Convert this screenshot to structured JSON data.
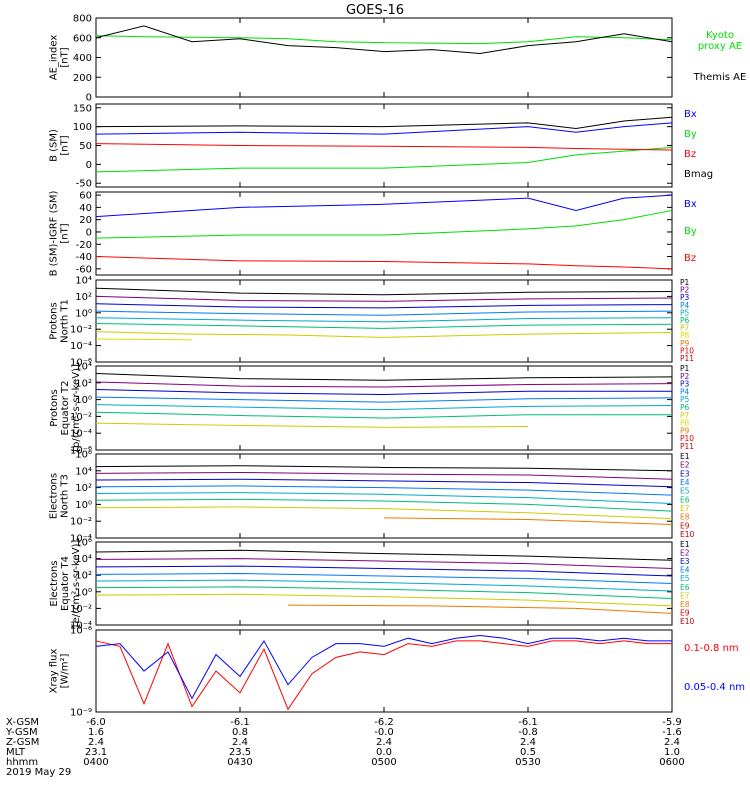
{
  "title": "GOES-16",
  "colors": {
    "black": "#000000",
    "blue": "#0000ff",
    "green": "#00dd00",
    "red": "#ff0000",
    "purple": "#800080"
  },
  "chart_data": [
    {
      "type": "line",
      "panel": "ae",
      "ylabel": [
        "AE_index",
        "[nT]"
      ],
      "ylim": [
        0,
        800
      ],
      "ticks": [
        "800",
        "600",
        "400",
        "200",
        "0"
      ],
      "tick_values": [
        800,
        600,
        400,
        200,
        0
      ],
      "x": [
        0,
        10,
        20,
        30,
        40,
        50,
        60,
        70,
        80,
        90,
        100,
        110,
        120
      ],
      "series": [
        {
          "name": "Kyoto proxy AE",
          "legend": [
            "Kyoto",
            "proxy AE"
          ],
          "color": "#00dd00",
          "values": [
            620,
            610,
            605,
            600,
            590,
            560,
            550,
            545,
            540,
            560,
            610,
            600,
            580
          ]
        },
        {
          "name": "Themis AE",
          "legend": [
            "Themis AE"
          ],
          "color": "#000000",
          "values": [
            600,
            720,
            560,
            590,
            520,
            500,
            460,
            480,
            440,
            520,
            560,
            640,
            560
          ]
        }
      ]
    },
    {
      "type": "line",
      "panel": "bsm",
      "ylabel": [
        "B (SM)",
        "[nT]"
      ],
      "ylim": [
        -60,
        160
      ],
      "ticks": [
        "150",
        "100",
        "50",
        "0",
        "-50"
      ],
      "tick_values": [
        150,
        100,
        50,
        0,
        -50
      ],
      "x": [
        0,
        30,
        60,
        90,
        100,
        110,
        120
      ],
      "series": [
        {
          "name": "Bx",
          "color": "#0000ff",
          "values": [
            80,
            85,
            80,
            100,
            85,
            100,
            110
          ]
        },
        {
          "name": "By",
          "color": "#00dd00",
          "values": [
            -20,
            -10,
            -10,
            5,
            25,
            35,
            45
          ]
        },
        {
          "name": "Bz",
          "color": "#ff0000",
          "values": [
            55,
            50,
            48,
            45,
            42,
            40,
            38
          ]
        },
        {
          "name": "Bmag",
          "color": "#000000",
          "values": [
            100,
            102,
            100,
            110,
            95,
            115,
            125
          ]
        }
      ]
    },
    {
      "type": "line",
      "panel": "bigrf",
      "ylabel": [
        "B (SM)-IGRF (SM)",
        "[nT]"
      ],
      "ylim": [
        -70,
        65
      ],
      "ticks": [
        "60",
        "40",
        "20",
        "0",
        "-20",
        "-40",
        "-60"
      ],
      "tick_values": [
        60,
        40,
        20,
        0,
        -20,
        -40,
        -60
      ],
      "x": [
        0,
        30,
        60,
        90,
        100,
        110,
        120
      ],
      "series": [
        {
          "name": "Bx",
          "color": "#0000ff",
          "values": [
            25,
            40,
            45,
            55,
            35,
            55,
            60
          ]
        },
        {
          "name": "By",
          "color": "#00dd00",
          "values": [
            -10,
            -5,
            -5,
            5,
            10,
            20,
            35
          ]
        },
        {
          "name": "Bz",
          "color": "#ff0000",
          "values": [
            -40,
            -47,
            -48,
            -52,
            -55,
            -57,
            -60
          ]
        }
      ]
    },
    {
      "type": "line",
      "panel": "protons-t1",
      "ylabel": [
        "Protons",
        "North T1"
      ],
      "yscale": "log",
      "ylim": [
        -6,
        4
      ],
      "ticks": [
        "10⁴",
        "10²",
        "10⁰",
        "10⁻²",
        "10⁻⁴",
        "10⁻⁶"
      ],
      "tick_exps": [
        4,
        2,
        0,
        -2,
        -4,
        -6
      ],
      "channels": [
        "P1",
        "P2",
        "P3",
        "P4",
        "P5",
        "P6",
        "P7",
        "P8",
        "P9",
        "P10",
        "P11"
      ],
      "channel_colors": [
        "#000000",
        "#800080",
        "#0000cc",
        "#0077ff",
        "#00aacc",
        "#00bb77",
        "#cccc00",
        "#dddd00",
        "#ee7700",
        "#dd0000",
        "#bb0000"
      ],
      "series_log10": [
        {
          "name": "P1",
          "x": [
            0,
            30,
            60,
            90,
            120
          ],
          "values": [
            3.0,
            2.4,
            2.2,
            2.5,
            2.6
          ]
        },
        {
          "name": "P2",
          "x": [
            0,
            30,
            60,
            90,
            120
          ],
          "values": [
            2.0,
            1.5,
            1.4,
            1.7,
            1.8
          ]
        },
        {
          "name": "P3",
          "x": [
            0,
            30,
            60,
            90,
            120
          ],
          "values": [
            1.1,
            0.7,
            0.6,
            0.9,
            1.0
          ]
        },
        {
          "name": "P4",
          "x": [
            0,
            30,
            60,
            90,
            120
          ],
          "values": [
            0.2,
            -0.1,
            -0.3,
            0.1,
            0.2
          ]
        },
        {
          "name": "P5",
          "x": [
            0,
            30,
            60,
            90,
            120
          ],
          "values": [
            -0.6,
            -0.9,
            -1.1,
            -0.7,
            -0.6
          ]
        },
        {
          "name": "P6",
          "x": [
            0,
            30,
            60,
            90,
            120
          ],
          "values": [
            -1.3,
            -1.6,
            -1.9,
            -1.5,
            -1.4
          ]
        },
        {
          "name": "P7",
          "x": [
            0,
            20,
            40,
            60,
            90,
            120
          ],
          "values": [
            -2.3,
            -2.6,
            -2.7,
            -3.0,
            -2.6,
            -2.4
          ]
        },
        {
          "name": "P8",
          "x": [
            0,
            20
          ],
          "values": [
            -3.2,
            -3.3
          ]
        }
      ]
    },
    {
      "type": "line",
      "panel": "protons-t2",
      "ylabel": [
        "Protons",
        "Equator T2",
        "[p/(cm²-s-sr-keV)]"
      ],
      "yscale": "log",
      "ylim": [
        -6,
        4
      ],
      "ticks": [
        "10⁴",
        "10²",
        "10⁰",
        "10⁻²",
        "10⁻⁴",
        "10⁻⁶"
      ],
      "tick_exps": [
        4,
        2,
        0,
        -2,
        -4,
        -6
      ],
      "channels": [
        "P1",
        "P2",
        "P3",
        "P4",
        "P5",
        "P6",
        "P7",
        "P8",
        "P9",
        "P10",
        "P11"
      ],
      "channel_colors": [
        "#000000",
        "#800080",
        "#0000cc",
        "#0077ff",
        "#00aacc",
        "#00bb77",
        "#cccc00",
        "#dddd00",
        "#ee7700",
        "#dd0000",
        "#bb0000"
      ],
      "series_log10": [
        {
          "name": "P1",
          "x": [
            0,
            30,
            60,
            90,
            120
          ],
          "values": [
            3.1,
            2.5,
            2.3,
            2.6,
            2.7
          ]
        },
        {
          "name": "P2",
          "x": [
            0,
            30,
            60,
            90,
            120
          ],
          "values": [
            2.1,
            1.6,
            1.5,
            1.8,
            1.9
          ]
        },
        {
          "name": "P3",
          "x": [
            0,
            30,
            60,
            90,
            120
          ],
          "values": [
            1.2,
            0.8,
            0.6,
            1.0,
            1.0
          ]
        },
        {
          "name": "P4",
          "x": [
            0,
            30,
            60,
            90,
            120
          ],
          "values": [
            0.3,
            0.0,
            -0.3,
            0.1,
            0.2
          ]
        },
        {
          "name": "P5",
          "x": [
            0,
            30,
            60,
            90,
            120
          ],
          "values": [
            -0.6,
            -0.9,
            -1.2,
            -0.8,
            -0.7
          ]
        },
        {
          "name": "P6",
          "x": [
            0,
            30,
            60,
            90,
            120
          ],
          "values": [
            -1.5,
            -1.9,
            -2.2,
            -1.8,
            -1.8
          ]
        },
        {
          "name": "P7",
          "x": [
            0,
            20,
            60,
            90
          ],
          "values": [
            -2.8,
            -3.0,
            -3.3,
            -3.2
          ]
        }
      ]
    },
    {
      "type": "line",
      "panel": "electrons-t3",
      "ylabel": [
        "Electrons",
        "North T3"
      ],
      "yscale": "log",
      "ylim": [
        -4,
        6
      ],
      "ticks": [
        "10⁶",
        "10⁴",
        "10²",
        "10⁰",
        "10⁻²",
        "10⁻⁴"
      ],
      "tick_exps": [
        6,
        4,
        2,
        0,
        -2,
        -4
      ],
      "channels": [
        "E1",
        "E2",
        "E3",
        "E4",
        "E5",
        "E6",
        "E7",
        "E8",
        "E9",
        "E10"
      ],
      "channel_colors": [
        "#000000",
        "#800080",
        "#0000cc",
        "#0077ff",
        "#00aacc",
        "#00bb77",
        "#cccc00",
        "#ee7700",
        "#dd0000",
        "#bb0000"
      ],
      "series_log10": [
        {
          "name": "E1",
          "x": [
            0,
            30,
            60,
            90,
            120
          ],
          "values": [
            4.5,
            4.6,
            4.4,
            4.3,
            4.0
          ]
        },
        {
          "name": "E2",
          "x": [
            0,
            30,
            60,
            90,
            120
          ],
          "values": [
            3.7,
            3.8,
            3.6,
            3.5,
            3.0
          ]
        },
        {
          "name": "E3",
          "x": [
            0,
            30,
            60,
            90,
            120
          ],
          "values": [
            2.9,
            3.0,
            2.8,
            2.6,
            2.1
          ]
        },
        {
          "name": "E4",
          "x": [
            0,
            30,
            60,
            90,
            120
          ],
          "values": [
            2.1,
            2.2,
            2.0,
            1.7,
            1.1
          ]
        },
        {
          "name": "E5",
          "x": [
            0,
            30,
            60,
            90,
            120
          ],
          "values": [
            1.3,
            1.4,
            1.2,
            0.8,
            0.1
          ]
        },
        {
          "name": "E6",
          "x": [
            0,
            30,
            60,
            90,
            120
          ],
          "values": [
            0.5,
            0.6,
            0.4,
            0.0,
            -0.8
          ]
        },
        {
          "name": "E7",
          "x": [
            0,
            30,
            60,
            90,
            120
          ],
          "values": [
            -0.4,
            -0.3,
            -0.5,
            -1.0,
            -1.7
          ]
        },
        {
          "name": "E8",
          "x": [
            60,
            90,
            120
          ],
          "values": [
            -1.6,
            -1.8,
            -2.4
          ]
        }
      ]
    },
    {
      "type": "line",
      "panel": "electrons-t4",
      "ylabel": [
        "Electrons",
        "Equator T4",
        "[e/(cm²-s-sr-keV)]"
      ],
      "yscale": "log",
      "ylim": [
        -4,
        6
      ],
      "ticks": [
        "10⁶",
        "10⁴",
        "10²",
        "10⁰",
        "10⁻²",
        "10⁻⁴"
      ],
      "tick_exps": [
        6,
        4,
        2,
        0,
        -2,
        -4
      ],
      "channels": [
        "E1",
        "E2",
        "E3",
        "E4",
        "E5",
        "E6",
        "E7",
        "E8",
        "E9",
        "E10"
      ],
      "channel_colors": [
        "#000000",
        "#800080",
        "#0000cc",
        "#0077ff",
        "#00aacc",
        "#00bb77",
        "#cccc00",
        "#ee7700",
        "#dd0000",
        "#bb0000"
      ],
      "series_log10": [
        {
          "name": "E1",
          "x": [
            0,
            30,
            60,
            90,
            120
          ],
          "values": [
            4.8,
            5.0,
            4.6,
            4.3,
            3.8
          ]
        },
        {
          "name": "E2",
          "x": [
            0,
            30,
            60,
            90,
            120
          ],
          "values": [
            3.9,
            4.0,
            3.7,
            3.4,
            2.8
          ]
        },
        {
          "name": "E3",
          "x": [
            0,
            30,
            60,
            90,
            120
          ],
          "values": [
            3.0,
            3.1,
            2.8,
            2.5,
            1.9
          ]
        },
        {
          "name": "E4",
          "x": [
            0,
            30,
            60,
            90,
            120
          ],
          "values": [
            2.1,
            2.2,
            1.9,
            1.6,
            1.0
          ]
        },
        {
          "name": "E5",
          "x": [
            0,
            30,
            60,
            90,
            120
          ],
          "values": [
            1.3,
            1.4,
            1.1,
            0.7,
            0.1
          ]
        },
        {
          "name": "E6",
          "x": [
            0,
            30,
            60,
            90,
            120
          ],
          "values": [
            0.5,
            0.6,
            0.3,
            -0.1,
            -0.8
          ]
        },
        {
          "name": "E7",
          "x": [
            0,
            30,
            60,
            90,
            120
          ],
          "values": [
            -0.4,
            -0.3,
            -0.6,
            -1.0,
            -1.7
          ]
        },
        {
          "name": "E8",
          "x": [
            40,
            70,
            100,
            120
          ],
          "values": [
            -1.6,
            -1.7,
            -2.0,
            -2.6
          ]
        }
      ]
    },
    {
      "type": "line",
      "panel": "xray",
      "ylabel": [
        "Xray flux",
        "[W/m²]"
      ],
      "yscale": "log",
      "ylim": [
        -9,
        -6
      ],
      "ticks": [
        "10⁻⁶",
        "10⁻⁹"
      ],
      "tick_exps": [
        -6,
        -9
      ],
      "x": [
        0,
        5,
        10,
        15,
        20,
        25,
        30,
        35,
        40,
        45,
        50,
        55,
        60,
        65,
        70,
        75,
        80,
        85,
        90,
        95,
        100,
        105,
        110,
        115,
        120
      ],
      "series": [
        {
          "name": "0.1-0.8 nm",
          "color": "#ff0000",
          "values": [
            -6.4,
            -6.6,
            -8.7,
            -6.5,
            -8.8,
            -7.5,
            -8.3,
            -6.7,
            -8.9,
            -7.6,
            -7.0,
            -6.8,
            -6.9,
            -6.5,
            -6.6,
            -6.4,
            -6.4,
            -6.5,
            -6.6,
            -6.4,
            -6.4,
            -6.5,
            -6.4,
            -6.5,
            -6.5
          ]
        },
        {
          "name": "0.05-0.4 nm",
          "color": "#0000ff",
          "values": [
            -6.6,
            -6.5,
            -7.5,
            -6.8,
            -8.5,
            -6.9,
            -7.7,
            -6.4,
            -8.0,
            -7.0,
            -6.5,
            -6.5,
            -6.6,
            -6.3,
            -6.5,
            -6.3,
            -6.2,
            -6.3,
            -6.5,
            -6.3,
            -6.3,
            -6.4,
            -6.3,
            -6.4,
            -6.4
          ]
        }
      ]
    }
  ],
  "xaxis": {
    "rows": [
      {
        "label": "X-GSM",
        "values": [
          "-6.0",
          "-6.1",
          "-6.2",
          "-6.1",
          "-5.9"
        ]
      },
      {
        "label": "Y-GSM",
        "values": [
          "1.6",
          "0.8",
          "-0.0",
          "-0.8",
          "-1.6"
        ]
      },
      {
        "label": "Z-GSM",
        "values": [
          "2.4",
          "2.4",
          "2.4",
          "2.4",
          "2.4"
        ]
      },
      {
        "label": "MLT",
        "values": [
          "23.1",
          "23.5",
          "0.0",
          "0.5",
          "1.0"
        ]
      },
      {
        "label": "hhmm",
        "values": [
          "0400",
          "0430",
          "0500",
          "0530",
          "0600"
        ]
      }
    ],
    "date": "2019 May 29"
  }
}
